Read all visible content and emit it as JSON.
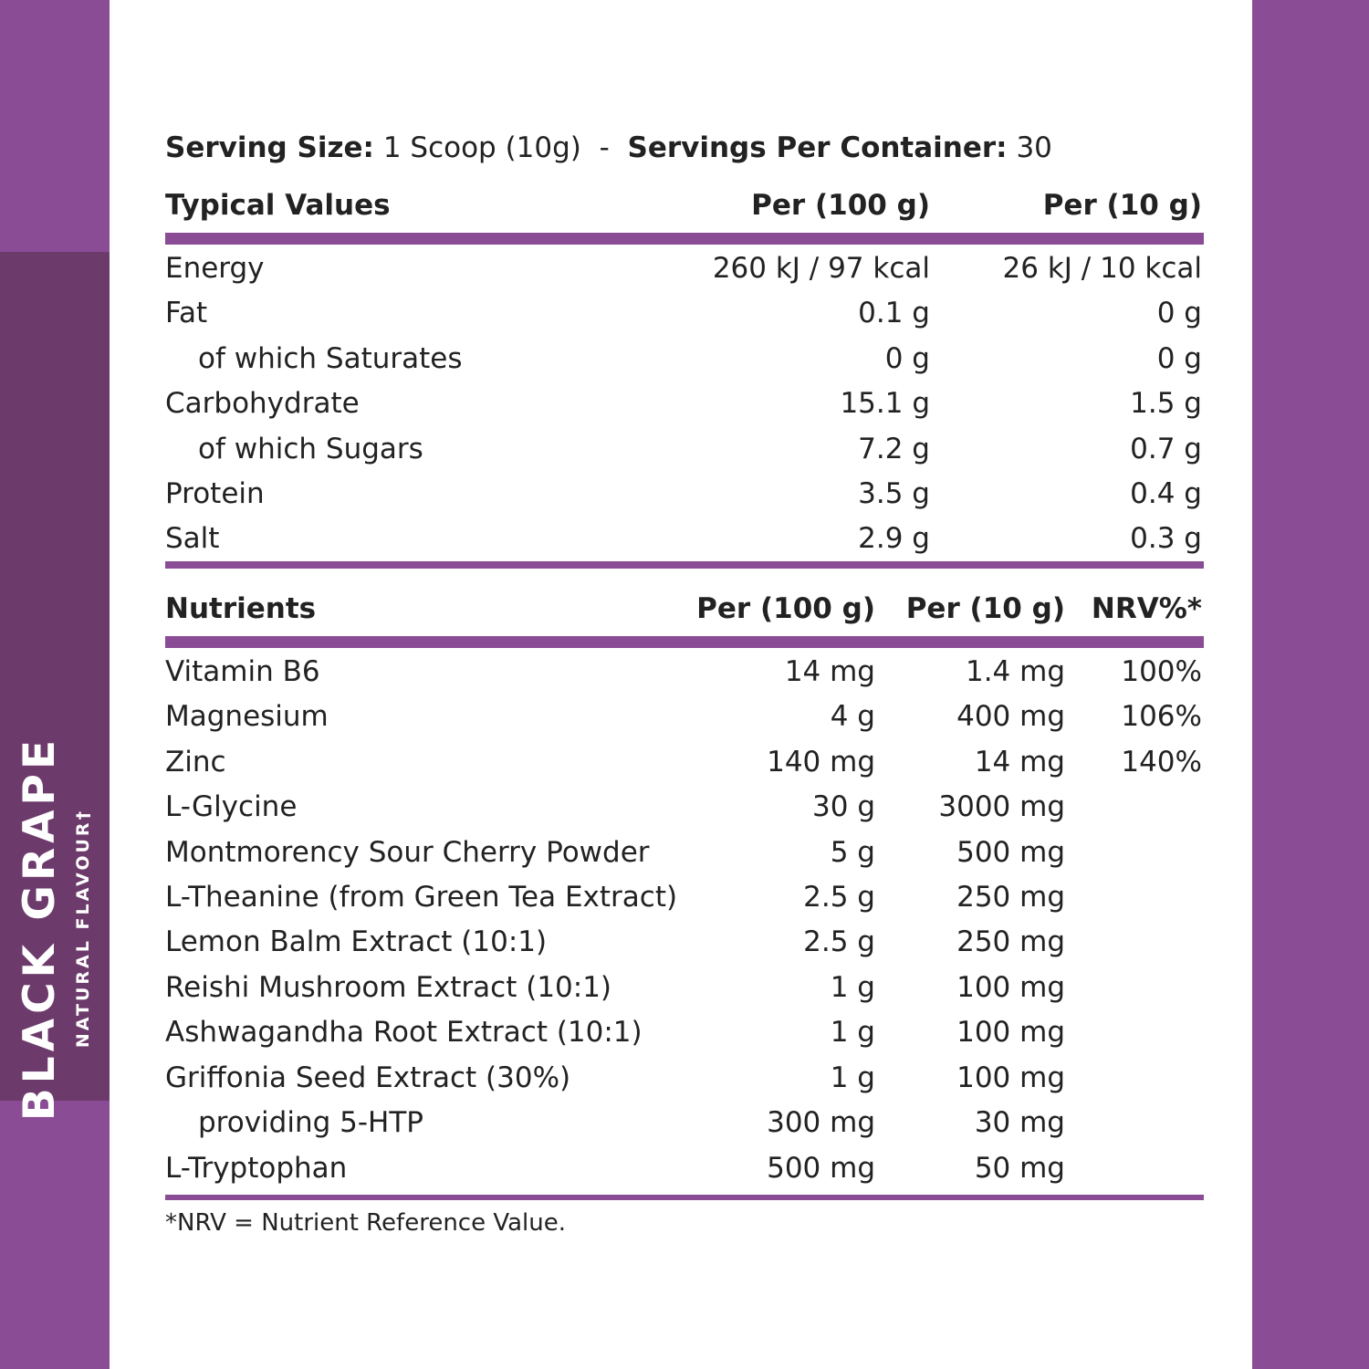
{
  "colors": {
    "brand_purple": "#8b4c96",
    "band_purple": "#6d3a6c"
  },
  "flavour": {
    "name": "BLACK GRAPE",
    "subtitle": "NATURAL FLAVOUR†"
  },
  "serving": {
    "size_label": "Serving Size:",
    "size_value": "1 Scoop (10g)",
    "separator": "-",
    "per_container_label": "Servings Per Container:",
    "per_container_value": "30"
  },
  "typical": {
    "headers": [
      "Typical Values",
      "Per (100 g)",
      "Per (10 g)"
    ],
    "rows": [
      [
        "Energy",
        "260 kJ / 97 kcal",
        "26 kJ / 10 kcal"
      ],
      [
        "Fat",
        "0.1 g",
        "0 g"
      ],
      [
        "of which Saturates",
        "0 g",
        "0 g"
      ],
      [
        "Carbohydrate",
        "15.1 g",
        "1.5 g"
      ],
      [
        "of which Sugars",
        "7.2 g",
        "0.7 g"
      ],
      [
        "Protein",
        "3.5 g",
        "0.4 g"
      ],
      [
        "Salt",
        "2.9 g",
        "0.3 g"
      ]
    ]
  },
  "nutrients": {
    "headers": [
      "Nutrients",
      "Per (100 g)",
      "Per (10 g)",
      "NRV%*"
    ],
    "rows": [
      [
        "Vitamin B6",
        "14 mg",
        "1.4 mg",
        "100%"
      ],
      [
        "Magnesium",
        "4 g",
        "400 mg",
        "106%"
      ],
      [
        "Zinc",
        "140 mg",
        "14 mg",
        "140%"
      ],
      [
        "L-Glycine",
        "30 g",
        "3000 mg",
        ""
      ],
      [
        "Montmorency Sour Cherry Powder",
        "5 g",
        "500 mg",
        ""
      ],
      [
        "L-Theanine (from Green Tea Extract)",
        "2.5 g",
        "250 mg",
        ""
      ],
      [
        "Lemon Balm Extract (10:1)",
        "2.5 g",
        "250 mg",
        ""
      ],
      [
        "Reishi Mushroom Extract (10:1)",
        "1 g",
        "100 mg",
        ""
      ],
      [
        "Ashwagandha Root Extract (10:1)",
        "1 g",
        "100 mg",
        ""
      ],
      [
        "Griffonia Seed Extract (30%)",
        "1 g",
        "100 mg",
        ""
      ],
      [
        "providing 5-HTP",
        "300 mg",
        "30 mg",
        ""
      ],
      [
        "L-Tryptophan",
        "500 mg",
        "50 mg",
        ""
      ]
    ]
  },
  "footnote": "*NRV = Nutrient Reference Value."
}
